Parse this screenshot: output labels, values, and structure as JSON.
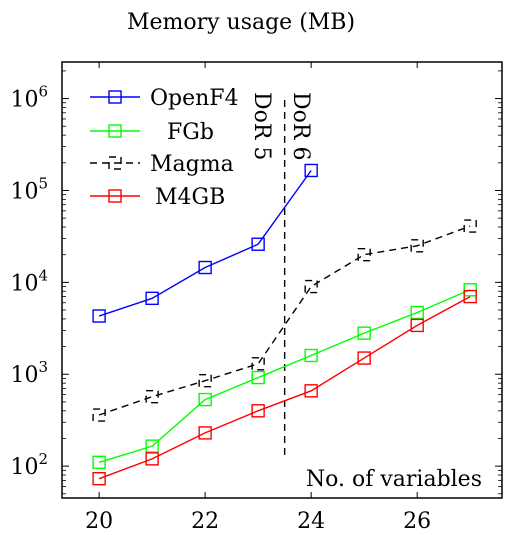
{
  "chart_data": {
    "type": "line",
    "title": "Memory usage (MB)",
    "xlabel": "No. of variables",
    "ylabel": "",
    "y_scale": "log",
    "xlim": [
      19.3,
      27.6
    ],
    "ylim": [
      45,
      2500000
    ],
    "x_ticks": [
      20,
      22,
      24,
      26
    ],
    "x_tick_labels": [
      "20",
      "22",
      "24",
      "26"
    ],
    "y_ticks": [
      100,
      1000,
      10000,
      100000,
      1000000
    ],
    "y_tick_base": "10",
    "y_tick_exponents": [
      "2",
      "3",
      "4",
      "5",
      "6"
    ],
    "grid": false,
    "legend_position": "top-left",
    "series": [
      {
        "name": "OpenF4",
        "color": "#0000ff",
        "dash": "solid",
        "x": [
          20,
          21,
          22,
          23,
          24
        ],
        "y": [
          4300,
          6700,
          14500,
          26000,
          165000
        ]
      },
      {
        "name": "FGb",
        "color": "#00ff00",
        "dash": "solid",
        "x": [
          20,
          21,
          22,
          23,
          24,
          25,
          26,
          27
        ],
        "y": [
          110,
          165,
          530,
          920,
          1600,
          2800,
          4700,
          8300
        ]
      },
      {
        "name": "Magma",
        "color": "#000000",
        "dash": "dashed",
        "x": [
          20,
          21,
          22,
          23,
          24,
          25,
          26,
          27
        ],
        "y": [
          360,
          570,
          850,
          1300,
          9000,
          20000,
          25000,
          41000
        ]
      },
      {
        "name": "M4GB",
        "color": "#ff0000",
        "dash": "solid",
        "x": [
          20,
          21,
          22,
          23,
          24,
          25,
          26,
          27
        ],
        "y": [
          73,
          120,
          230,
          400,
          660,
          1500,
          3400,
          7000
        ]
      }
    ],
    "annotations": {
      "divider_x": 23.5,
      "label_left": "DoR 5",
      "label_right": "DoR 6"
    }
  }
}
